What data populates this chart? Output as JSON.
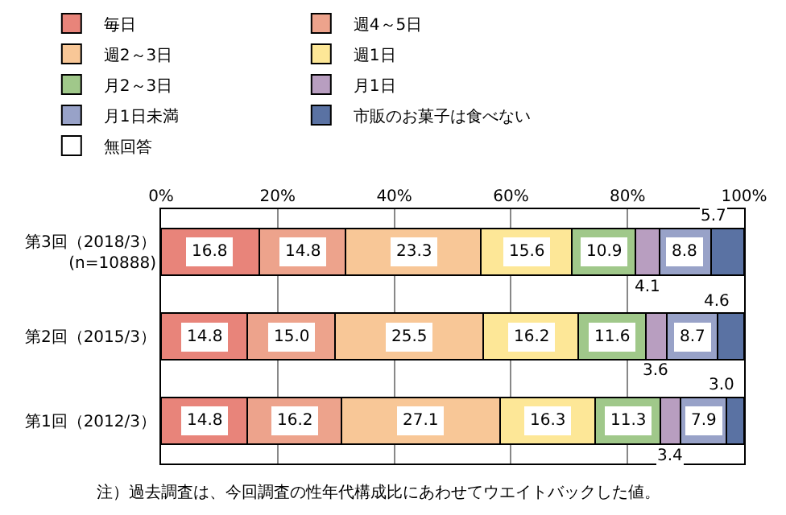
{
  "chart_data": {
    "type": "bar",
    "orientation": "horizontal",
    "stacked": true,
    "categories": [
      "第3回（2018/3）\n(n=10888)",
      "第2回（2015/3）",
      "第1回（2012/3）"
    ],
    "series": [
      {
        "name": "毎日",
        "color": "#e8847a",
        "values": [
          16.8,
          14.8,
          14.8
        ],
        "value_labels": [
          "16.8",
          "14.8",
          "14.8"
        ]
      },
      {
        "name": "週4～5日",
        "color": "#eda38c",
        "values": [
          14.8,
          15.0,
          16.2
        ],
        "value_labels": [
          "14.8",
          "15.0",
          "16.2"
        ]
      },
      {
        "name": "週2～3日",
        "color": "#f8c797",
        "values": [
          23.3,
          25.5,
          27.1
        ],
        "value_labels": [
          "23.3",
          "25.5",
          "27.1"
        ]
      },
      {
        "name": "週1日",
        "color": "#fde797",
        "values": [
          15.6,
          16.2,
          16.3
        ],
        "value_labels": [
          "15.6",
          "16.2",
          "16.3"
        ]
      },
      {
        "name": "月2～3日",
        "color": "#a0c88a",
        "values": [
          10.9,
          11.6,
          11.3
        ],
        "value_labels": [
          "10.9",
          "11.6",
          "11.3"
        ]
      },
      {
        "name": "月1日",
        "color": "#b89ec0",
        "values": [
          4.1,
          3.6,
          3.4
        ],
        "value_labels": [
          "4.1",
          "3.6",
          "3.4"
        ]
      },
      {
        "name": "月1日未満",
        "color": "#98a2c8",
        "values": [
          8.8,
          8.7,
          7.9
        ],
        "value_labels": [
          "8.8",
          "8.7",
          "7.9"
        ]
      },
      {
        "name": "市販のお菓子は食べない",
        "color": "#5a72a3",
        "values": [
          5.7,
          4.6,
          3.0
        ],
        "value_labels": [
          "5.7",
          "4.6",
          "3.0"
        ]
      },
      {
        "name": "無回答",
        "color": "#ffffff",
        "values": [
          null,
          null,
          null
        ]
      }
    ],
    "xlim": [
      0,
      100
    ],
    "xticks": [
      {
        "value": 0,
        "label": "0%"
      },
      {
        "value": 20,
        "label": "20%"
      },
      {
        "value": 40,
        "label": "40%"
      },
      {
        "value": 60,
        "label": "60%"
      },
      {
        "value": 80,
        "label": "80%"
      },
      {
        "value": 100,
        "label": "100%"
      }
    ],
    "grid": "x",
    "legend": "top",
    "annotations": [
      "注）過去調査は、今回調査の性年代構成比にあわせてウエイトバックした値。"
    ]
  }
}
